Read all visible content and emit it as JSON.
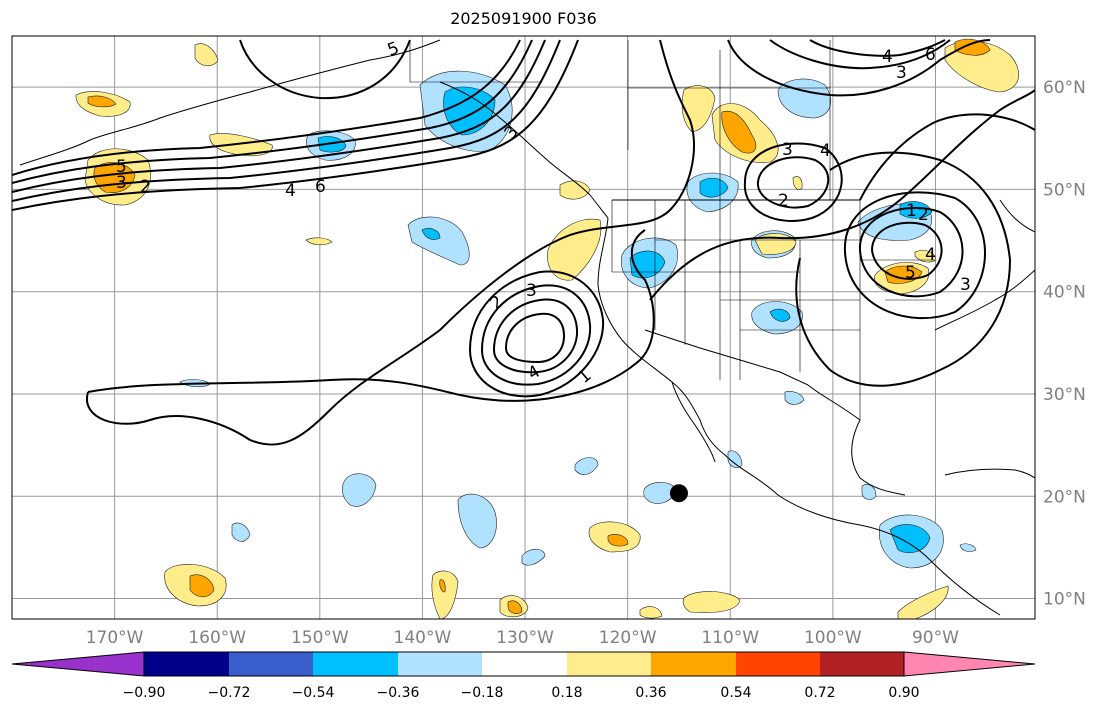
{
  "title": "2025091900 F036",
  "lon_ticks": [
    {
      "label": "170°W",
      "lon": -170
    },
    {
      "label": "160°W",
      "lon": -160
    },
    {
      "label": "150°W",
      "lon": -150
    },
    {
      "label": "140°W",
      "lon": -140
    },
    {
      "label": "130°W",
      "lon": -130
    },
    {
      "label": "120°W",
      "lon": -120
    },
    {
      "label": "110°W",
      "lon": -110
    },
    {
      "label": "100°W",
      "lon": -100
    },
    {
      "label": "90°W",
      "lon": -90
    }
  ],
  "lat_ticks": [
    {
      "label": "60°N",
      "lat": 60
    },
    {
      "label": "50°N",
      "lat": 50
    },
    {
      "label": "40°N",
      "lat": 40
    },
    {
      "label": "30°N",
      "lat": 30
    },
    {
      "label": "20°N",
      "lat": 20
    },
    {
      "label": "10°N",
      "lat": 10
    }
  ],
  "map_extent": {
    "lon_min": -180,
    "lon_max": -80.3,
    "lat_min": 8,
    "lat_max": 65
  },
  "colorbar": {
    "tick_labels": [
      "−0.90",
      "−0.72",
      "−0.54",
      "−0.36",
      "−0.18",
      "0.18",
      "0.36",
      "0.54",
      "0.72",
      "0.90"
    ],
    "colors": [
      "#9932cc",
      "#00008b",
      "#3a5fcd",
      "#00bfff",
      "#b0e2ff",
      "#ffffff",
      "#ffec8b",
      "#ffa500",
      "#ff4500",
      "#b22222",
      "#ff86b0"
    ]
  },
  "contour_labels": [
    "5",
    "3",
    "2",
    "4",
    "6",
    "5",
    "3",
    "2",
    "4",
    "1",
    "3",
    "4",
    "3",
    "2",
    "1",
    "2",
    "4",
    "3",
    "5",
    "4",
    "3",
    "6"
  ],
  "point_marker": {
    "lon": -115,
    "lat": 20.3
  }
}
